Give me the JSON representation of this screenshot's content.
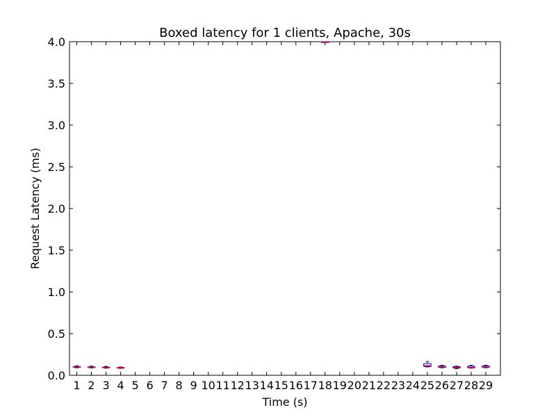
{
  "chart_data": {
    "type": "box",
    "title": "Boxed latency for 1 clients, Apache, 30s",
    "xlabel": "Time (s)",
    "ylabel": "Request Latency (ms)",
    "ylim": [
      0,
      4.0
    ],
    "yticks": [
      0.0,
      0.5,
      1.0,
      1.5,
      2.0,
      2.5,
      3.0,
      3.5,
      4.0
    ],
    "ytick_labels": [
      "0.0",
      "0.5",
      "1.0",
      "1.5",
      "2.0",
      "2.5",
      "3.0",
      "3.5",
      "4.0"
    ],
    "categories": [
      "1",
      "2",
      "3",
      "4",
      "5",
      "6",
      "7",
      "8",
      "9",
      "10",
      "11",
      "12",
      "13",
      "14",
      "15",
      "16",
      "17",
      "18",
      "19",
      "20",
      "21",
      "22",
      "23",
      "24",
      "25",
      "26",
      "27",
      "28",
      "29"
    ],
    "boxes": [
      {
        "x": "1",
        "whisker_low": 0.09,
        "q1": 0.095,
        "median": 0.1,
        "q3": 0.105,
        "whisker_high": 0.115
      },
      {
        "x": "2",
        "whisker_low": 0.088,
        "q1": 0.093,
        "median": 0.097,
        "q3": 0.102,
        "whisker_high": 0.11
      },
      {
        "x": "3",
        "whisker_low": 0.085,
        "q1": 0.09,
        "median": 0.094,
        "q3": 0.099,
        "whisker_high": 0.107
      },
      {
        "x": "4",
        "whisker_low": 0.083,
        "q1": 0.087,
        "median": 0.09,
        "q3": 0.094,
        "whisker_high": 0.1
      },
      {
        "x": "18",
        "whisker_low": 3.99,
        "q1": 3.99,
        "median": 3.995,
        "q3": 4.0,
        "whisker_high": 4.0
      },
      {
        "x": "25",
        "whisker_low": 0.1,
        "q1": 0.105,
        "median": 0.115,
        "q3": 0.14,
        "whisker_high": 0.165
      },
      {
        "x": "26",
        "whisker_low": 0.09,
        "q1": 0.095,
        "median": 0.1,
        "q3": 0.11,
        "whisker_high": 0.12
      },
      {
        "x": "27",
        "whisker_low": 0.08,
        "q1": 0.088,
        "median": 0.095,
        "q3": 0.103,
        "whisker_high": 0.11
      },
      {
        "x": "28",
        "whisker_low": 0.085,
        "q1": 0.09,
        "median": 0.095,
        "q3": 0.11,
        "whisker_high": 0.12
      },
      {
        "x": "29",
        "whisker_low": 0.09,
        "q1": 0.095,
        "median": 0.1,
        "q3": 0.112,
        "whisker_high": 0.12
      }
    ],
    "colors": {
      "box": "#0000ff",
      "whisker": "#0000ff",
      "median": "#ff0000",
      "axis": "#000000"
    },
    "grid": false,
    "legend": "none"
  }
}
